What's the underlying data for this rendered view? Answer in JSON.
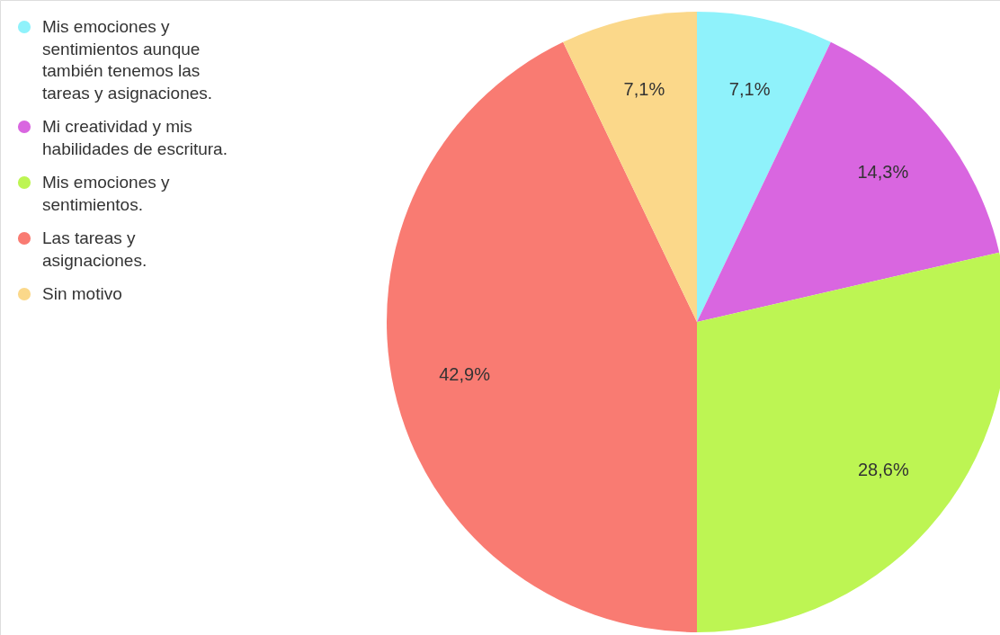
{
  "chart_data": {
    "type": "pie",
    "categories": [
      "Mis emociones y sentimientos aunque también tenemos las tareas y asignaciones.",
      "Mi creatividad y mis habilidades de escritura.",
      "Mis emociones y sentimientos.",
      "Las tareas y asignaciones.",
      "Sin motivo"
    ],
    "values": [
      7.1,
      14.3,
      28.6,
      42.9,
      7.1
    ],
    "colors": [
      "#8ff2fb",
      "#d966e0",
      "#bdf553",
      "#f97b72",
      "#fbd88a"
    ],
    "value_labels": [
      "7,1%",
      "14,3%",
      "28,6%",
      "42,9%",
      "7,1%"
    ],
    "legend": "top left"
  }
}
